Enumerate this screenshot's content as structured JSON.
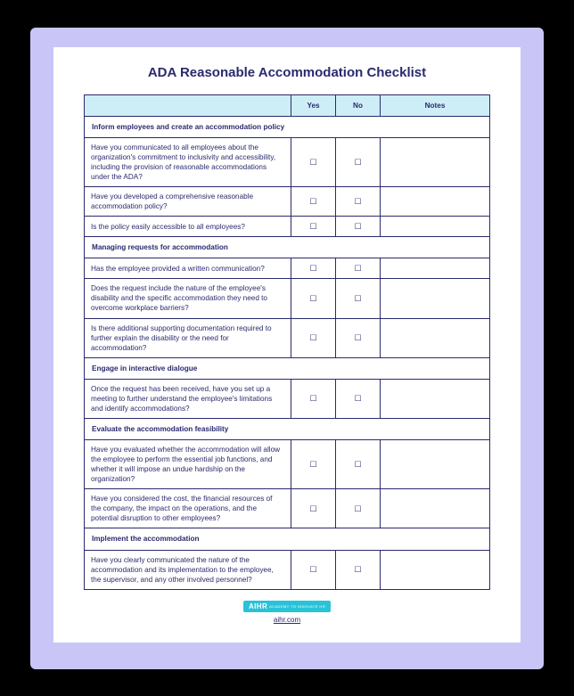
{
  "title": "ADA Reasonable Accommodation Checklist",
  "columns": {
    "yes": "Yes",
    "no": "No",
    "notes": "Notes"
  },
  "checkbox_glyph": "☐",
  "colors": {
    "page_bg": "#ffffff",
    "outer_bg": "#c9c6f7",
    "frame_bg": "#000000",
    "border": "#2a2a6e",
    "header_bg": "#cdeef6",
    "text": "#2a2a6e",
    "badge_bg": "#29c3d8",
    "badge_text": "#ffffff"
  },
  "sections": [
    {
      "heading": "Inform employees and create an accommodation policy",
      "items": [
        "Have you communicated to all employees about the organization's commitment to inclusivity and accessibility, including the provision of reasonable accommodations under the ADA?",
        "Have you developed a comprehensive reasonable accommodation policy?",
        "Is the policy easily accessible to all employees?"
      ]
    },
    {
      "heading": "Managing requests for accommodation",
      "items": [
        "Has the employee provided a written communication?",
        "Does the request include the nature of the employee's disability and the specific accommodation they need to overcome workplace barriers?",
        "Is there additional supporting documentation required to further explain the disability or the need for accommodation?"
      ]
    },
    {
      "heading": "Engage in interactive dialogue",
      "items": [
        "Once the request has been received, have you set up a meeting to further understand the employee's limitations and identify accommodations?"
      ]
    },
    {
      "heading": "Evaluate the accommodation feasibility",
      "items": [
        "Have you evaluated whether the accommodation will allow the employee to perform the essential job functions, and whether it will impose an undue hardship on the organization?",
        "Have you considered the cost, the financial resources of the company, the impact on the operations, and the potential disruption to other employees?"
      ]
    },
    {
      "heading": "Implement the accommodation",
      "items": [
        "Have you clearly communicated the nature of the accommodation and its implementation to the employee, the supervisor, and any other involved personnel?"
      ]
    }
  ],
  "footer": {
    "badge_main": "AIHR",
    "badge_sub": "ACADEMY TO\nINNOVATE HR",
    "site": "aihr.com"
  }
}
